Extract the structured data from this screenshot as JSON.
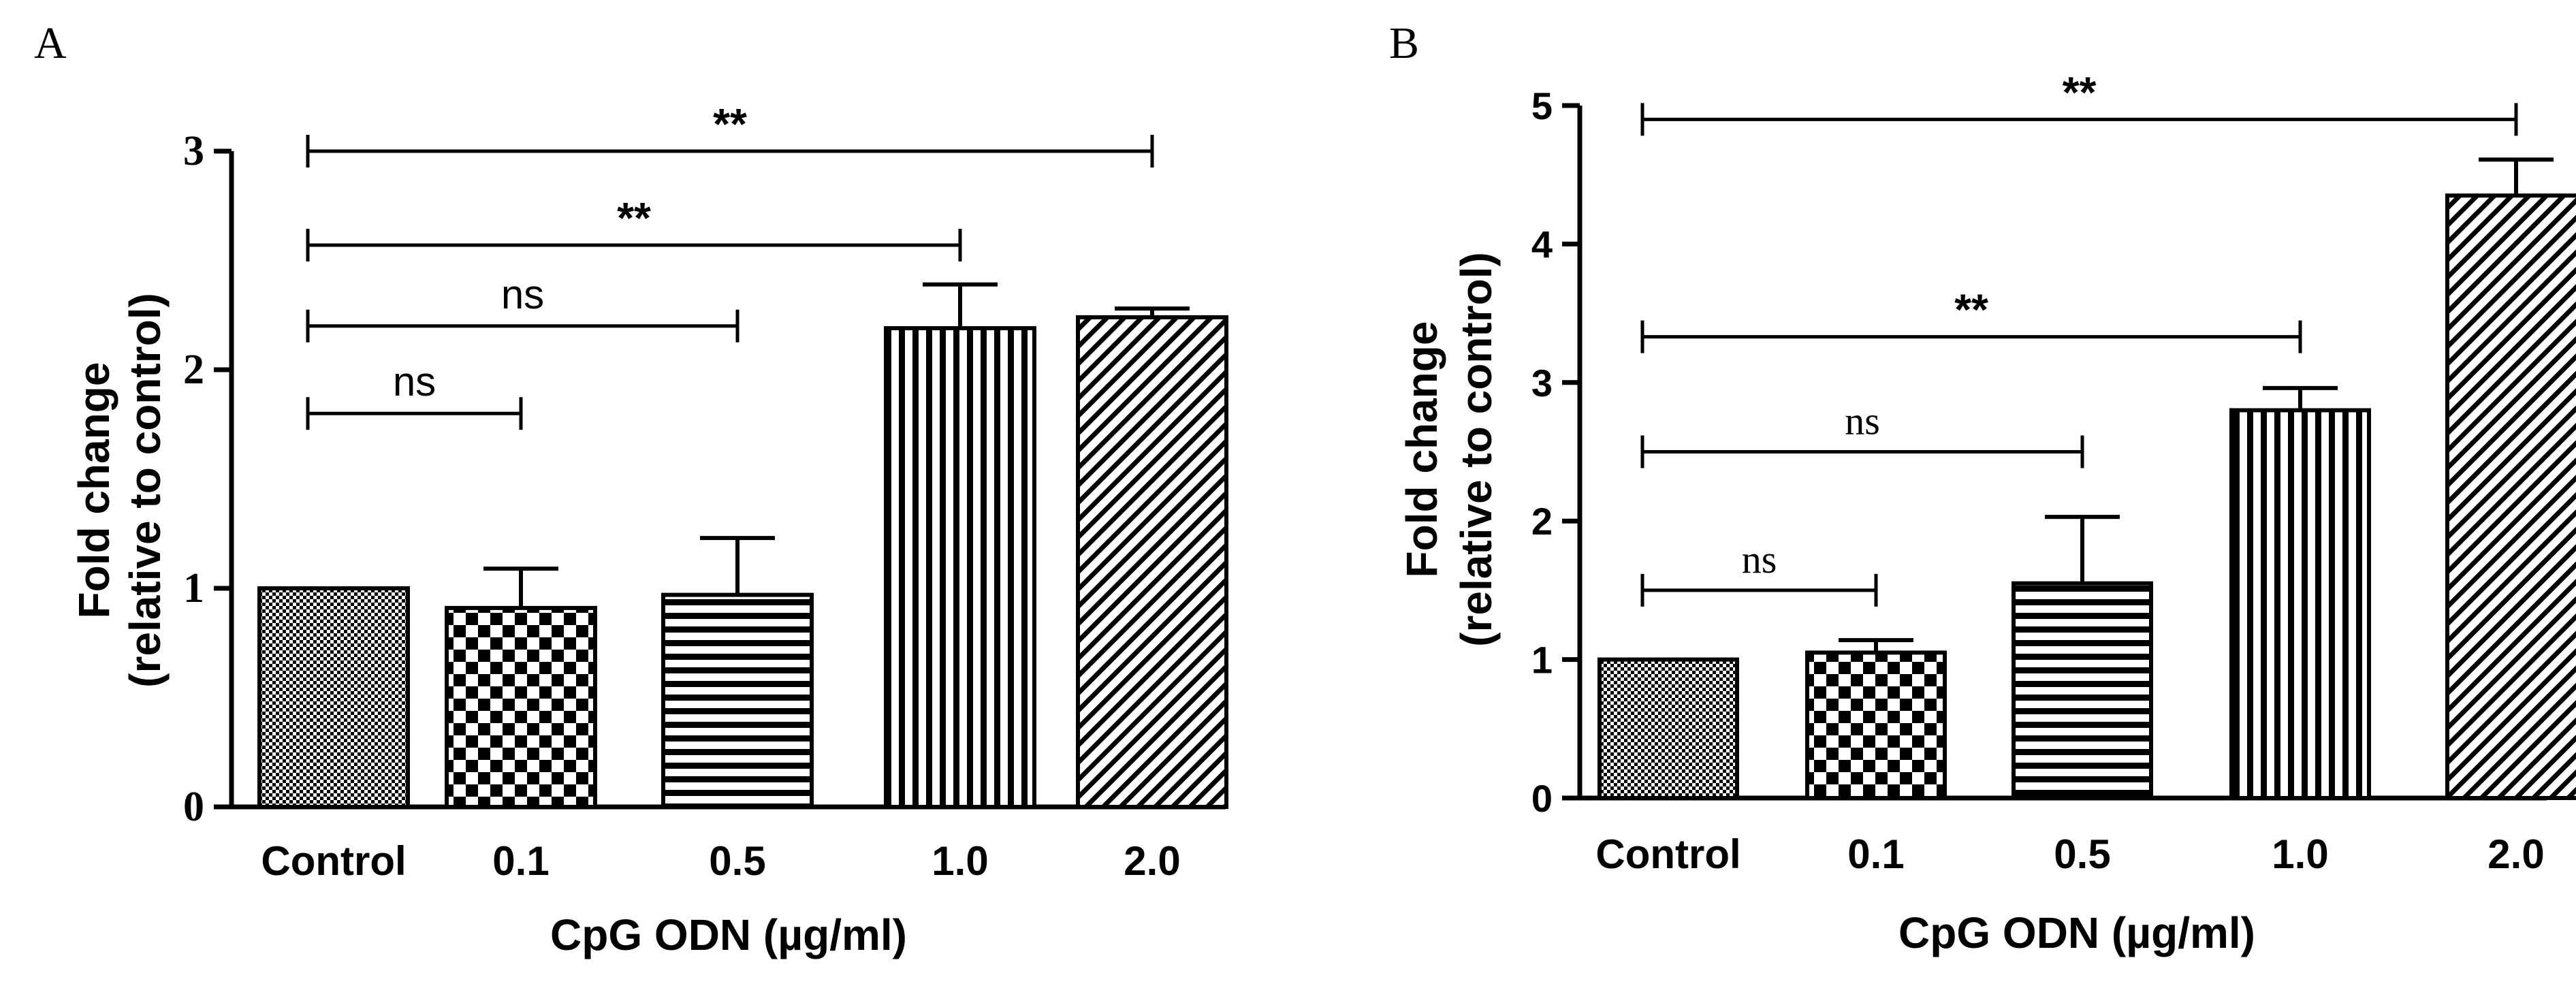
{
  "chart_data": [
    {
      "panel": "A",
      "type": "bar",
      "title": "",
      "xlabel": "CpG ODN (µg/ml)",
      "ylabel": [
        "Fold change",
        "(relative to control)"
      ],
      "ylim": [
        0,
        3
      ],
      "yticks": [
        "0",
        "1",
        "2",
        "3"
      ],
      "categories": [
        "Control",
        "0.1",
        "0.5",
        "1.0",
        "2.0"
      ],
      "values": [
        1.0,
        0.91,
        0.97,
        2.19,
        2.24
      ],
      "errors": [
        0.0,
        0.18,
        0.26,
        0.2,
        0.04
      ],
      "patterns": [
        "fine-check",
        "check",
        "hlines",
        "vlines",
        "diag"
      ],
      "significance": [
        {
          "from": "Control",
          "to": "0.1",
          "label": "ns",
          "y": 1.8
        },
        {
          "from": "Control",
          "to": "0.5",
          "label": "ns",
          "y": 2.2
        },
        {
          "from": "Control",
          "to": "1.0",
          "label": "**",
          "y": 2.57
        },
        {
          "from": "Control",
          "to": "2.0",
          "label": "**",
          "y": 3.0
        }
      ]
    },
    {
      "panel": "B",
      "type": "bar",
      "title": "",
      "xlabel": "CpG ODN (µg/ml)",
      "ylabel": [
        "Fold change",
        "(relative to control)"
      ],
      "ylim": [
        0,
        5
      ],
      "yticks": [
        "0",
        "1",
        "2",
        "3",
        "4",
        "5"
      ],
      "categories": [
        "Control",
        "0.1",
        "0.5",
        "1.0",
        "2.0"
      ],
      "values": [
        1.0,
        1.05,
        1.55,
        2.8,
        4.35
      ],
      "errors": [
        0.0,
        0.09,
        0.48,
        0.16,
        0.26
      ],
      "patterns": [
        "fine-check",
        "check",
        "hlines",
        "vlines",
        "diag"
      ],
      "significance": [
        {
          "from": "Control",
          "to": "0.1",
          "label": "ns",
          "y": 1.5
        },
        {
          "from": "Control",
          "to": "0.5",
          "label": "ns",
          "y": 2.5
        },
        {
          "from": "Control",
          "to": "1.0",
          "label": "**",
          "y": 3.33
        },
        {
          "from": "Control",
          "to": "2.0",
          "label": "**",
          "y": 4.9
        }
      ]
    }
  ]
}
